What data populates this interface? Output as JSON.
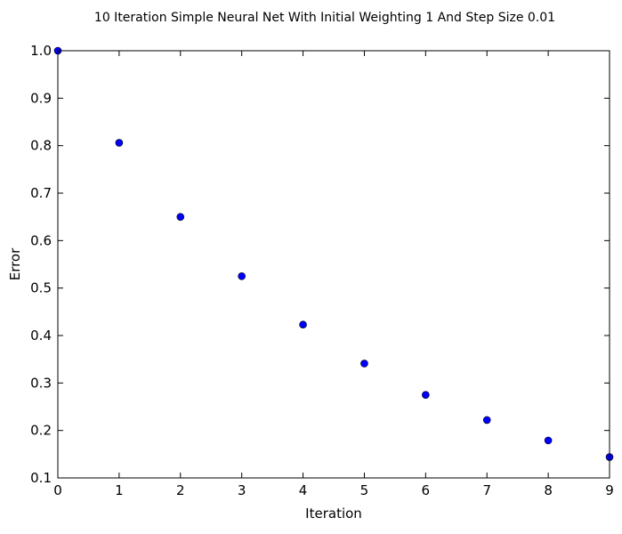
{
  "chart_data": {
    "type": "scatter",
    "title": "10 Iteration Simple Neural Net With Initial Weighting 1 And Step Size 0.01",
    "xlabel": "Iteration",
    "ylabel": "Error",
    "xlim": [
      0,
      9
    ],
    "ylim": [
      0.1,
      1.0
    ],
    "x_ticks": [
      0,
      1,
      2,
      3,
      4,
      5,
      6,
      7,
      8,
      9
    ],
    "y_ticks": [
      0.1,
      0.2,
      0.3,
      0.4,
      0.5,
      0.6,
      0.7,
      0.8,
      0.9,
      1.0
    ],
    "x_tick_labels": [
      "0",
      "1",
      "2",
      "3",
      "4",
      "5",
      "6",
      "7",
      "8",
      "9"
    ],
    "y_tick_labels": [
      "0.1",
      "0.2",
      "0.3",
      "0.4",
      "0.5",
      "0.6",
      "0.7",
      "0.8",
      "0.9",
      "1.0"
    ],
    "grid": false,
    "series": [
      {
        "marker_color": "#0000ff",
        "points": [
          {
            "x": 0,
            "y": 1.0
          },
          {
            "x": 1,
            "y": 0.806
          },
          {
            "x": 2,
            "y": 0.65
          },
          {
            "x": 3,
            "y": 0.525
          },
          {
            "x": 4,
            "y": 0.423
          },
          {
            "x": 5,
            "y": 0.341
          },
          {
            "x": 6,
            "y": 0.275
          },
          {
            "x": 7,
            "y": 0.222
          },
          {
            "x": 8,
            "y": 0.179
          },
          {
            "x": 9,
            "y": 0.144
          }
        ]
      }
    ]
  }
}
